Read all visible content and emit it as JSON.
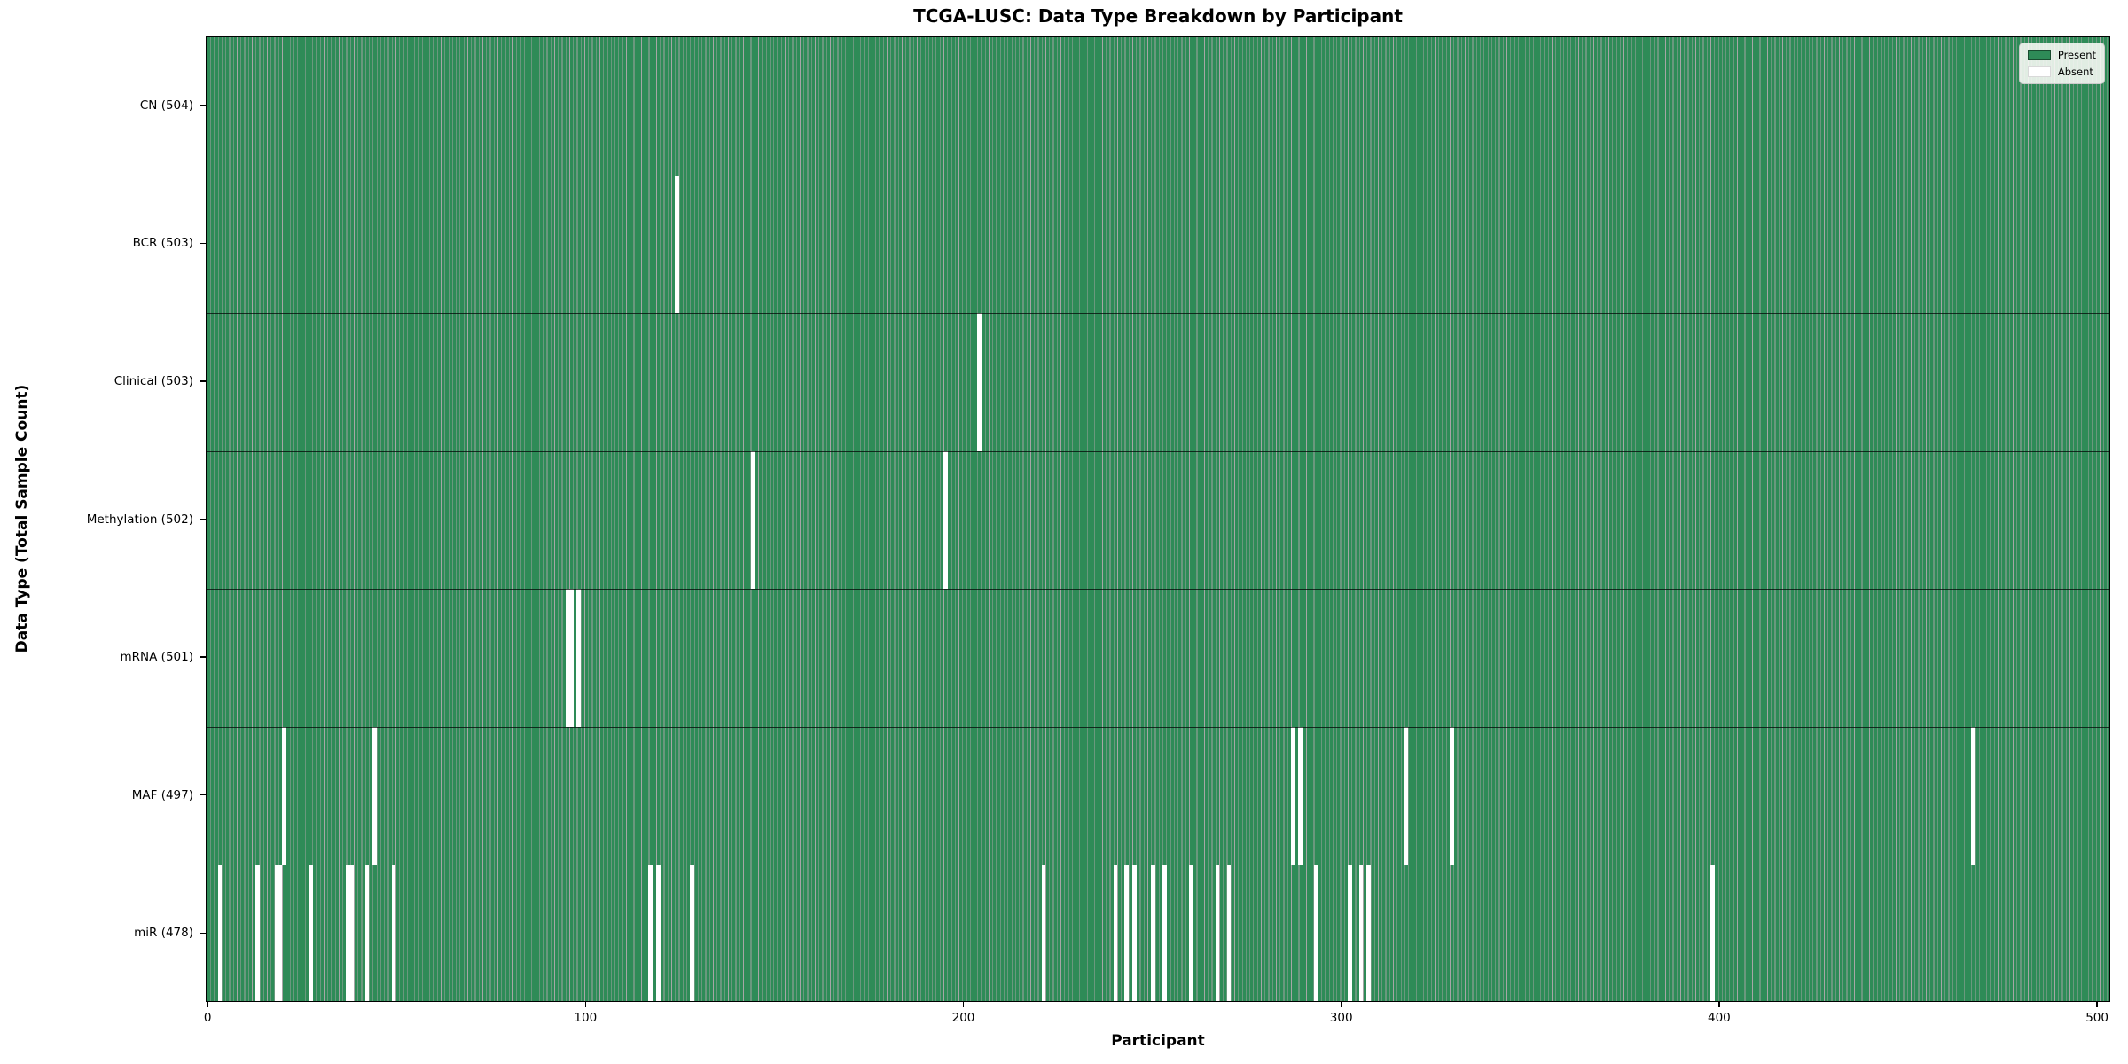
{
  "title": "TCGA-LUSC: Data Type Breakdown by Participant",
  "x_axis": {
    "label": "Participant",
    "ticks": [
      "0",
      "100",
      "200",
      "300",
      "400",
      "500"
    ]
  },
  "y_axis": {
    "label": "Data Type (Total Sample Count)"
  },
  "legend": {
    "present_label": "Present",
    "absent_label": "Absent"
  },
  "colors": {
    "present": "#2e8b57",
    "absent": "#ffffff",
    "bar_edge_overlay": "rgba(0,0,0,0.35)",
    "row_divider": "rgba(0,0,0,0.7)",
    "axis": "#000000",
    "legend_bg": "rgba(250,250,247,0.88)",
    "legend_border": "#cccccc"
  },
  "chart_data": {
    "type": "heatmap",
    "title": "TCGA-LUSC: Data Type Breakdown by Participant",
    "xlabel": "Participant",
    "ylabel": "Data Type (Total Sample Count)",
    "participants_total": 504,
    "x_range": [
      0,
      504
    ],
    "x_tick_values": [
      0,
      100,
      200,
      300,
      400,
      500
    ],
    "grid": false,
    "legend_position": "upper right",
    "cell_states": {
      "present": 1,
      "absent": 0
    },
    "rows": [
      {
        "label": "CN",
        "present_count": 504,
        "tick_label": "CN (504)",
        "absent_participants": []
      },
      {
        "label": "BCR",
        "present_count": 503,
        "tick_label": "BCR (503)",
        "absent_participants": [
          124
        ]
      },
      {
        "label": "Clinical",
        "present_count": 503,
        "tick_label": "Clinical (503)",
        "absent_participants": [
          204
        ]
      },
      {
        "label": "Methylation",
        "present_count": 502,
        "tick_label": "Methylation (502)",
        "absent_participants": [
          144,
          195
        ]
      },
      {
        "label": "mRNA",
        "present_count": 501,
        "tick_label": "mRNA (501)",
        "absent_participants": [
          95,
          96,
          98
        ]
      },
      {
        "label": "MAF",
        "present_count": 497,
        "tick_label": "MAF (497)",
        "absent_participants": [
          20,
          44,
          287,
          289,
          317,
          329,
          467
        ]
      },
      {
        "label": "miR",
        "present_count": 478,
        "tick_label": "miR (478)",
        "absent_participants": [
          3,
          13,
          18,
          19,
          27,
          37,
          38,
          42,
          49,
          117,
          119,
          128,
          221,
          240,
          243,
          245,
          250,
          253,
          260,
          267,
          270,
          293,
          302,
          305,
          307,
          398
        ]
      }
    ]
  }
}
